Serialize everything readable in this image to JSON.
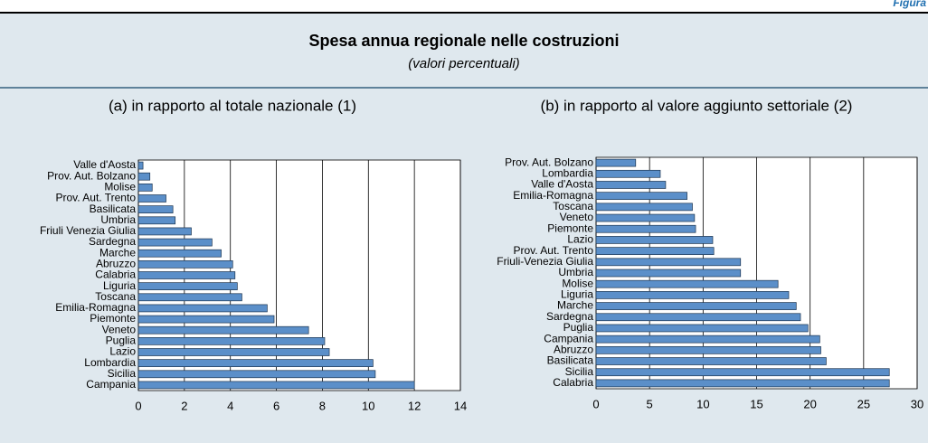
{
  "header": {
    "figure": "Figura",
    "title": "Spesa annua regionale nelle costruzioni",
    "subtitle": "(valori percentuali)"
  },
  "chart_data": [
    {
      "type": "bar",
      "orientation": "horizontal",
      "title": "(a) in rapporto al totale nazionale (1)",
      "categories": [
        "Valle d'Aosta",
        "Prov. Aut. Bolzano",
        "Molise",
        "Prov. Aut. Trento",
        "Basilicata",
        "Umbria",
        "Friuli Venezia Giulia",
        "Sardegna",
        "Marche",
        "Abruzzo",
        "Calabria",
        "Liguria",
        "Toscana",
        "Emilia-Romagna",
        "Piemonte",
        "Veneto",
        "Puglia",
        "Lazio",
        "Lombardia",
        "Sicilia",
        "Campania"
      ],
      "values": [
        0.2,
        0.5,
        0.6,
        1.2,
        1.5,
        1.6,
        2.3,
        3.2,
        3.6,
        4.1,
        4.2,
        4.3,
        4.5,
        5.6,
        5.9,
        7.4,
        8.1,
        8.3,
        10.2,
        10.3,
        12.0
      ],
      "color": "#5b8fc9",
      "xlim": [
        0,
        14
      ],
      "xticks": [
        0,
        2,
        4,
        6,
        8,
        10,
        12,
        14
      ],
      "grid": true
    },
    {
      "type": "bar",
      "orientation": "horizontal",
      "title": "(b) in rapporto al valore aggiunto settoriale (2)",
      "categories": [
        "Prov. Aut. Bolzano",
        "Lombardia",
        "Valle d'Aosta",
        "Emilia-Romagna",
        "Toscana",
        "Veneto",
        "Piemonte",
        "Lazio",
        "Prov. Aut. Trento",
        "Friuli-Venezia Giulia",
        "Umbria",
        "Molise",
        "Liguria",
        "Marche",
        "Sardegna",
        "Puglia",
        "Campania",
        "Abruzzo",
        "Basilicata",
        "Sicilia",
        "Calabria"
      ],
      "values": [
        3.7,
        6.0,
        6.5,
        8.5,
        9.0,
        9.2,
        9.3,
        10.9,
        11.0,
        13.5,
        13.5,
        17.0,
        18.0,
        18.7,
        19.1,
        19.8,
        20.9,
        21.0,
        21.5,
        27.4,
        27.4
      ],
      "color": "#5b8fc9",
      "xlim": [
        0,
        30
      ],
      "xticks": [
        0,
        5,
        10,
        15,
        20,
        25,
        30
      ],
      "grid": true
    }
  ]
}
